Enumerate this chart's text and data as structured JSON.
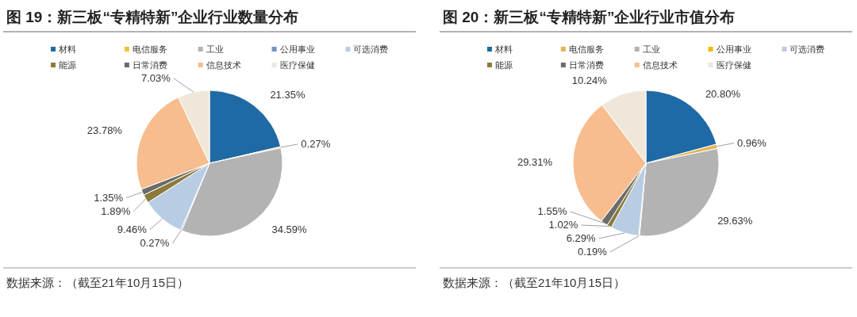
{
  "chart_data": [
    {
      "type": "pie",
      "title": "图 19：新三板“专精特新”企业行业数量分布",
      "legend": "top",
      "categories": [
        "材料",
        "电信服务",
        "工业",
        "公用事业",
        "可选消费",
        "能源",
        "日常消费",
        "信息技术",
        "医疗保健"
      ],
      "values": [
        21.35,
        0.27,
        34.59,
        0.27,
        9.46,
        1.89,
        1.35,
        23.78,
        7.03
      ],
      "value_labels": [
        "21.35%",
        "0.27%",
        "34.59%",
        "0.27%",
        "9.46%",
        "1.89%",
        "1.35%",
        "23.78%",
        "7.03%"
      ],
      "colors": [
        "#1f6aa5",
        "#f0c341",
        "#b3b3b3",
        "#7292c4",
        "#b8cde4",
        "#8d7b3c",
        "#6b6b6b",
        "#f7bd8e",
        "#efe7da"
      ],
      "annotations": [
        "数据来源：（截至21年10月15日）"
      ]
    },
    {
      "type": "pie",
      "title": "图 20：新三板“专精特新”企业行业市值分布",
      "legend": "top",
      "categories": [
        "材料",
        "电信服务",
        "工业",
        "公用事业",
        "可选消费",
        "能源",
        "日常消费",
        "信息技术",
        "医疗保健"
      ],
      "values": [
        20.8,
        0.96,
        29.63,
        0.19,
        6.29,
        1.02,
        1.55,
        29.31,
        10.24
      ],
      "value_labels": [
        "20.80%",
        "0.96%",
        "29.63%",
        "0.19%",
        "6.29%",
        "1.02%",
        "1.55%",
        "29.31%",
        "10.24%"
      ],
      "colors": [
        "#1f6aa5",
        "#e3b457",
        "#b3b3b3",
        "#f5b800",
        "#b8cde4",
        "#8d7b3c",
        "#6b6b6b",
        "#f7bd8e",
        "#efe7da"
      ],
      "annotations": [
        "数据来源：（截至21年10月15日）"
      ]
    }
  ]
}
